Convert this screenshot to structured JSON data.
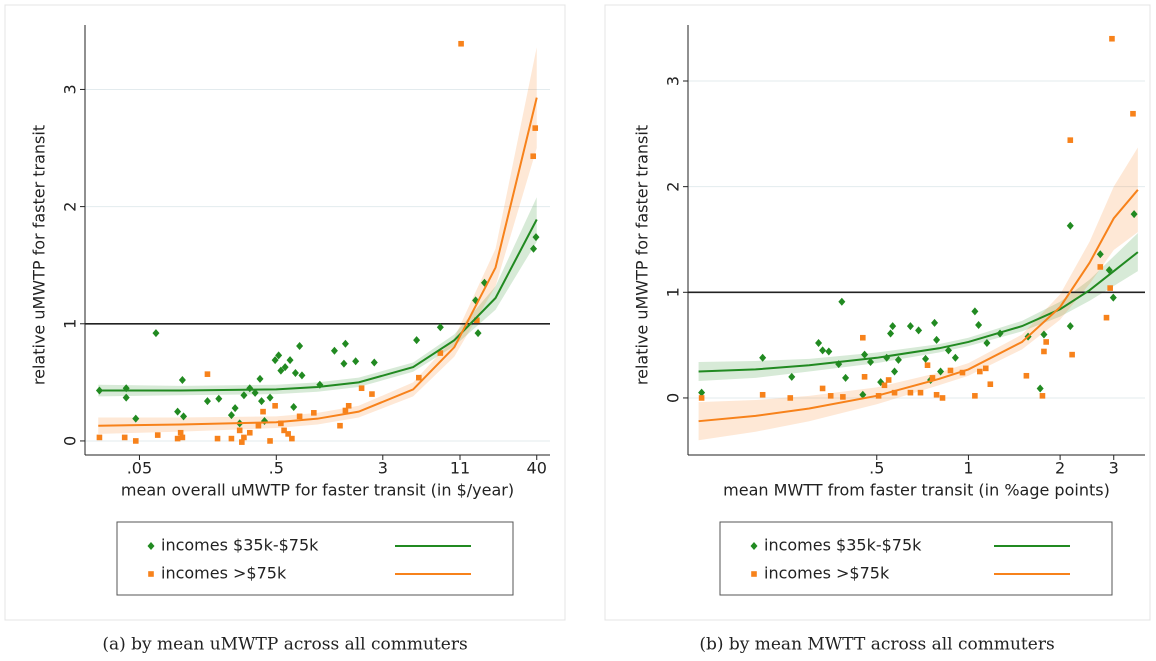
{
  "chart_data": [
    {
      "type": "scatter",
      "caption": "(a) by mean uMWTP across all commuters",
      "xlabel": "mean overall uMWTP for faster transit (in $/year)",
      "ylabel": "relative uMWTP for faster transit",
      "log_x": true,
      "grid": true,
      "reference_line": 1,
      "xlim": [
        0.02,
        50
      ],
      "ylim": [
        -0.12,
        3.55
      ],
      "xticks": [
        {
          "value": 0.05,
          "label": ".05"
        },
        {
          "value": 0.5,
          "label": ".5"
        },
        3,
        11,
        40
      ],
      "yticks": [
        0,
        1,
        2,
        3
      ],
      "series": [
        {
          "name": "incomes $35k-$75k",
          "color": "#218a21",
          "marker": "diamond",
          "x": [
            0.0255,
            0.04,
            0.04,
            0.047,
            0.066,
            0.103,
            0.095,
            0.105,
            0.157,
            0.19,
            0.235,
            0.25,
            0.27,
            0.29,
            0.32,
            0.35,
            0.38,
            0.39,
            0.41,
            0.45,
            0.49,
            0.52,
            0.54,
            0.58,
            0.63,
            0.67,
            0.69,
            0.77,
            0.74,
            1.04,
            1.33,
            1.56,
            1.6,
            1.9,
            2.6,
            5.3,
            7.9,
            14.9,
            14.3,
            16.6,
            37.9,
            39.5
          ],
          "values": [
            0.43,
            0.45,
            0.37,
            0.19,
            0.92,
            0.52,
            0.25,
            0.21,
            0.34,
            0.36,
            0.22,
            0.28,
            0.15,
            0.39,
            0.45,
            0.41,
            0.53,
            0.34,
            0.17,
            0.37,
            0.69,
            0.73,
            0.6,
            0.63,
            0.69,
            0.29,
            0.58,
            0.56,
            0.81,
            0.48,
            0.77,
            0.66,
            0.83,
            0.68,
            0.67,
            0.86,
            0.97,
            0.92,
            1.2,
            1.35,
            1.64,
            1.74
          ],
          "fit": {
            "x": [
              0.025,
              0.1,
              0.5,
              1,
              2,
              5,
              10,
              20,
              40
            ],
            "y": [
              0.43,
              0.43,
              0.44,
              0.46,
              0.5,
              0.63,
              0.86,
              1.22,
              1.89
            ],
            "lower": [
              0.38,
              0.39,
              0.4,
              0.42,
              0.46,
              0.59,
              0.81,
              1.12,
              1.7
            ],
            "upper": [
              0.48,
              0.47,
              0.48,
              0.5,
              0.54,
              0.67,
              0.91,
              1.32,
              2.08
            ]
          }
        },
        {
          "name": "incomes >$75k",
          "color": "#f7821b",
          "marker": "square",
          "x": [
            0.0255,
            0.039,
            0.047,
            0.068,
            0.095,
            0.1,
            0.103,
            0.157,
            0.186,
            0.235,
            0.27,
            0.28,
            0.29,
            0.32,
            0.37,
            0.4,
            0.45,
            0.49,
            0.54,
            0.57,
            0.61,
            0.65,
            0.74,
            0.94,
            1.6,
            1.69,
            2.1,
            2.5,
            1.46,
            5.5,
            7.9,
            11.2,
            14.6,
            39,
            37.7
          ],
          "values": [
            0.03,
            0.03,
            0.0,
            0.05,
            0.02,
            0.07,
            0.03,
            0.57,
            0.02,
            0.02,
            0.09,
            -0.01,
            0.03,
            0.07,
            0.13,
            0.25,
            0.0,
            0.3,
            0.15,
            0.09,
            0.06,
            0.02,
            0.21,
            0.24,
            0.26,
            0.3,
            0.45,
            0.4,
            0.13,
            0.54,
            0.75,
            3.39,
            1.03,
            2.67,
            2.43
          ],
          "fit": {
            "x": [
              0.025,
              0.1,
              0.5,
              1,
              2,
              5,
              10,
              20,
              40
            ],
            "y": [
              0.13,
              0.14,
              0.16,
              0.19,
              0.25,
              0.44,
              0.8,
              1.48,
              2.93
            ],
            "lower": [
              0.06,
              0.08,
              0.11,
              0.14,
              0.2,
              0.38,
              0.72,
              1.32,
              2.5
            ],
            "upper": [
              0.2,
              0.2,
              0.21,
              0.24,
              0.3,
              0.5,
              0.88,
              1.64,
              3.36
            ]
          }
        }
      ]
    },
    {
      "type": "scatter",
      "caption": "(b) by mean MWTT across all commuters",
      "xlabel": "mean MWTT from faster transit (in %age points)",
      "ylabel": "relative uMWTP for faster transit",
      "log_x": true,
      "grid": true,
      "reference_line": 1,
      "xlim": [
        0.12,
        3.8
      ],
      "ylim": [
        -0.54,
        3.53
      ],
      "xticks": [
        {
          "value": 0.5,
          "label": ".5"
        },
        1,
        2,
        3
      ],
      "yticks": [
        0,
        1,
        2,
        3
      ],
      "series": [
        {
          "name": "incomes $35k-$75k",
          "color": "#218a21",
          "marker": "diamond",
          "x": [
            0.133,
            0.211,
            0.263,
            0.322,
            0.332,
            0.348,
            0.375,
            0.384,
            0.395,
            0.45,
            0.456,
            0.477,
            0.515,
            0.539,
            0.555,
            0.564,
            0.572,
            0.589,
            0.645,
            0.686,
            0.723,
            0.751,
            0.774,
            0.786,
            0.81,
            0.86,
            0.906,
            1.05,
            1.08,
            1.15,
            1.27,
            1.57,
            1.72,
            1.77,
            2.16,
            2.16,
            2.71,
            2.9,
            2.99,
            3.5
          ],
          "values": [
            0.05,
            0.38,
            0.2,
            0.52,
            0.45,
            0.44,
            0.32,
            0.91,
            0.19,
            0.03,
            0.41,
            0.34,
            0.15,
            0.38,
            0.61,
            0.68,
            0.25,
            0.36,
            0.68,
            0.64,
            0.37,
            0.17,
            0.71,
            0.55,
            0.25,
            0.45,
            0.38,
            0.82,
            0.69,
            0.52,
            0.61,
            0.58,
            0.09,
            0.6,
            1.63,
            0.68,
            1.36,
            1.21,
            0.95,
            1.74
          ],
          "fit": {
            "x": [
              0.13,
              0.2,
              0.3,
              0.5,
              0.8,
              1,
              1.5,
              2,
              2.5,
              3,
              3.6
            ],
            "y": [
              0.25,
              0.27,
              0.31,
              0.38,
              0.47,
              0.53,
              0.68,
              0.84,
              1.02,
              1.2,
              1.38
            ],
            "lower": [
              0.16,
              0.19,
              0.25,
              0.33,
              0.43,
              0.49,
              0.63,
              0.77,
              0.92,
              1.06,
              1.2
            ],
            "upper": [
              0.34,
              0.35,
              0.37,
              0.43,
              0.51,
              0.57,
              0.73,
              0.91,
              1.12,
              1.34,
              1.56
            ]
          }
        },
        {
          "name": "incomes >$75k",
          "color": "#f7821b",
          "marker": "square",
          "x": [
            0.133,
            0.211,
            0.26,
            0.332,
            0.353,
            0.387,
            0.45,
            0.456,
            0.507,
            0.53,
            0.547,
            0.572,
            0.645,
            0.696,
            0.734,
            0.762,
            0.786,
            0.822,
            0.873,
            0.956,
            1.05,
            1.09,
            1.14,
            1.18,
            1.55,
            1.75,
            1.77,
            1.8,
            2.16,
            2.19,
            2.71,
            2.84,
            2.92,
            2.96,
            3.47
          ],
          "values": [
            0.0,
            0.03,
            0.0,
            0.09,
            0.02,
            0.01,
            0.57,
            0.2,
            0.02,
            0.12,
            0.17,
            0.05,
            0.05,
            0.05,
            0.31,
            0.19,
            0.03,
            0.0,
            0.26,
            0.24,
            0.02,
            0.25,
            0.28,
            0.13,
            0.21,
            0.02,
            0.44,
            0.53,
            2.44,
            0.41,
            1.24,
            0.76,
            1.04,
            3.4,
            2.69
          ],
          "fit": {
            "x": [
              0.13,
              0.2,
              0.3,
              0.5,
              0.8,
              1,
              1.5,
              2,
              2.5,
              3,
              3.6
            ],
            "y": [
              -0.22,
              -0.17,
              -0.1,
              0.02,
              0.18,
              0.27,
              0.53,
              0.86,
              1.28,
              1.7,
              1.97
            ],
            "lower": [
              -0.4,
              -0.32,
              -0.22,
              -0.06,
              0.12,
              0.21,
              0.46,
              0.74,
              1.08,
              1.4,
              1.57
            ],
            "upper": [
              -0.04,
              -0.02,
              0.02,
              0.1,
              0.24,
              0.33,
              0.6,
              0.98,
              1.48,
              2.0,
              2.37
            ]
          }
        }
      ]
    }
  ]
}
